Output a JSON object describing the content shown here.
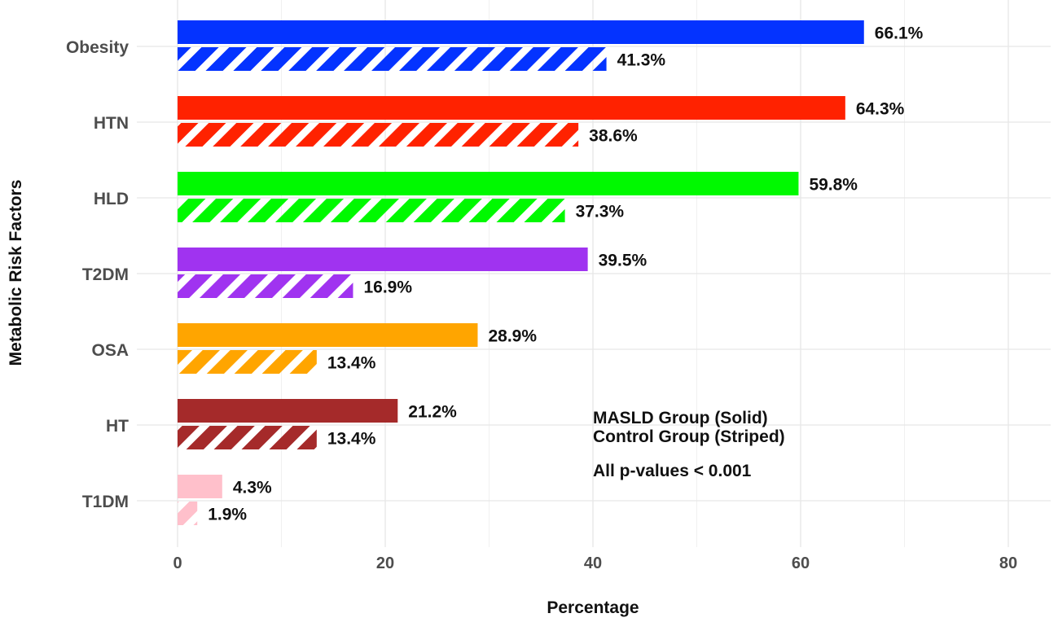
{
  "chart_data": {
    "type": "bar",
    "orientation": "horizontal",
    "title": "",
    "xlabel": "Percentage",
    "ylabel": "Metabolic Risk Factors",
    "xlim": [
      0,
      80
    ],
    "xticks": [
      0,
      20,
      40,
      60,
      80
    ],
    "grid": true,
    "categories": [
      "Obesity",
      "HTN",
      "HLD",
      "T2DM",
      "OSA",
      "HT",
      "T1DM"
    ],
    "colors": [
      "#0433FF",
      "#FF2200",
      "#00F900",
      "#A033F0",
      "#FFA500",
      "#A52A2A",
      "#FFC0CB"
    ],
    "series": [
      {
        "name": "MASLD Group (Solid)",
        "pattern": "solid",
        "values": [
          66.1,
          64.3,
          59.8,
          39.5,
          28.9,
          21.2,
          4.3
        ],
        "labels": [
          "66.1%",
          "64.3%",
          "59.8%",
          "39.5%",
          "28.9%",
          "21.2%",
          "4.3%"
        ]
      },
      {
        "name": "Control Group (Striped)",
        "pattern": "striped",
        "values": [
          41.3,
          38.6,
          37.3,
          16.9,
          13.4,
          13.4,
          1.9
        ],
        "labels": [
          "41.3%",
          "38.6%",
          "37.3%",
          "16.9%",
          "13.4%",
          "13.4%",
          "1.9%"
        ]
      }
    ],
    "annotations": [
      "MASLD Group (Solid)",
      "Control Group (Striped)",
      "All p-values < 0.001"
    ]
  }
}
